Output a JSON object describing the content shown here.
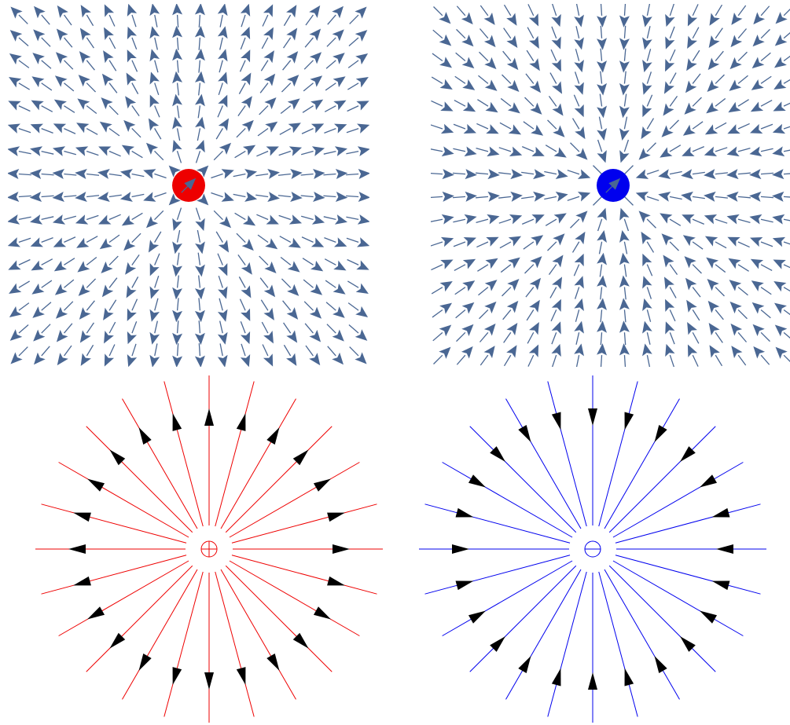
{
  "colors": {
    "arrow": "#4a6793",
    "positive": "#ee0000",
    "negative": "#0000ee",
    "line_arrow": "#000000"
  },
  "panels": [
    {
      "kind": "vector-field",
      "charge": "positive",
      "icon": "positive-charge-dot-icon",
      "grid": 16
    },
    {
      "kind": "vector-field",
      "charge": "negative",
      "icon": "negative-charge-dot-icon",
      "grid": 16
    },
    {
      "kind": "field-lines",
      "charge": "positive",
      "icon": "plus-circle-icon",
      "lines": 24
    },
    {
      "kind": "field-lines",
      "charge": "negative",
      "icon": "minus-circle-icon",
      "lines": 24
    }
  ]
}
